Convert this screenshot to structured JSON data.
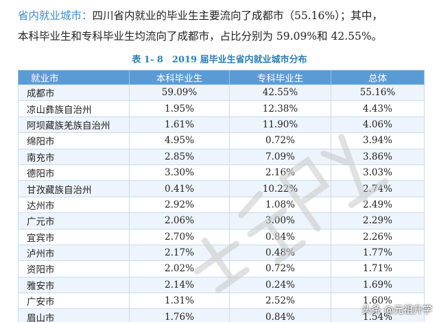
{
  "intro": {
    "lead": "省内就业城市：",
    "line1": "四川省内就业的毕业生主要流向了成都市（55.16%）；其中，",
    "line2": "本科毕业生和专科毕业生均流向了成都市，占比分别为 59.09%和 42.55%。"
  },
  "caption": "表 1- 8　2019 届毕业生省内就业城市分布",
  "table": {
    "headers": [
      "就业市",
      "本科毕业生",
      "专科毕业生",
      "总体"
    ],
    "rows": [
      [
        "成都市",
        "59.09%",
        "42.55%",
        "55.16%"
      ],
      [
        "凉山彝族自治州",
        "1.95%",
        "12.38%",
        "4.43%"
      ],
      [
        "阿坝藏族羌族自治州",
        "1.61%",
        "11.90%",
        "4.06%"
      ],
      [
        "绵阳市",
        "4.95%",
        "0.72%",
        "3.94%"
      ],
      [
        "南充市",
        "2.85%",
        "7.09%",
        "3.86%"
      ],
      [
        "德阳市",
        "3.30%",
        "2.16%",
        "3.03%"
      ],
      [
        "甘孜藏族自治州",
        "0.41%",
        "10.22%",
        "2.74%"
      ],
      [
        "达州市",
        "2.92%",
        "1.08%",
        "2.49%"
      ],
      [
        "广元市",
        "2.06%",
        "3.00%",
        "2.29%"
      ],
      [
        "宜宾市",
        "2.70%",
        "0.84%",
        "2.26%"
      ],
      [
        "泸州市",
        "2.17%",
        "0.48%",
        "1.77%"
      ],
      [
        "资阳市",
        "2.02%",
        "0.72%",
        "1.71%"
      ],
      [
        "雅安市",
        "2.14%",
        "0.24%",
        "1.69%"
      ],
      [
        "广安市",
        "1.31%",
        "2.52%",
        "1.60%"
      ],
      [
        "眉山市",
        "1.76%",
        "0.84%",
        "1.54%"
      ]
    ]
  },
  "watermark": "升会员水印",
  "footer": "头条 @元祖升学"
}
